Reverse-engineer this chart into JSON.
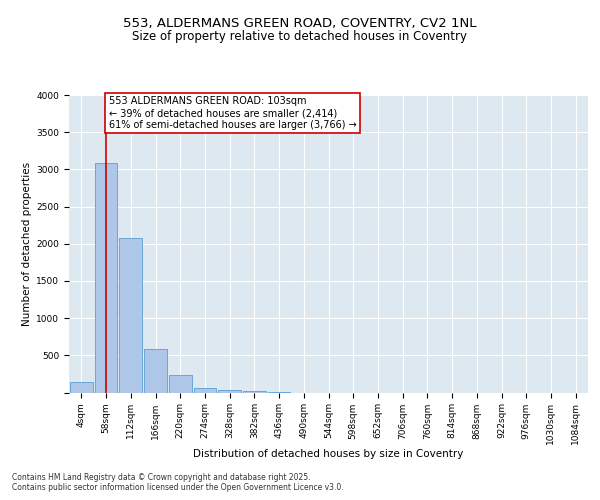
{
  "title_line1": "553, ALDERMANS GREEN ROAD, COVENTRY, CV2 1NL",
  "title_line2": "Size of property relative to detached houses in Coventry",
  "xlabel": "Distribution of detached houses by size in Coventry",
  "ylabel": "Number of detached properties",
  "bar_labels": [
    "4sqm",
    "58sqm",
    "112sqm",
    "166sqm",
    "220sqm",
    "274sqm",
    "328sqm",
    "382sqm",
    "436sqm",
    "490sqm",
    "544sqm",
    "598sqm",
    "652sqm",
    "706sqm",
    "760sqm",
    "814sqm",
    "868sqm",
    "922sqm",
    "976sqm",
    "1030sqm",
    "1084sqm"
  ],
  "bar_values": [
    140,
    3080,
    2080,
    580,
    230,
    65,
    35,
    25,
    5,
    0,
    0,
    0,
    0,
    0,
    0,
    0,
    0,
    0,
    0,
    0,
    0
  ],
  "bar_color": "#aec6e8",
  "bar_edge_color": "#5a9fd4",
  "vline_x": 1.0,
  "vline_color": "#cc0000",
  "annotation_text": "553 ALDERMANS GREEN ROAD: 103sqm\n← 39% of detached houses are smaller (2,414)\n61% of semi-detached houses are larger (3,766) →",
  "annotation_box_color": "#ffffff",
  "annotation_box_edge": "#cc0000",
  "ylim": [
    0,
    4000
  ],
  "yticks": [
    0,
    500,
    1000,
    1500,
    2000,
    2500,
    3000,
    3500,
    4000
  ],
  "background_color": "#dde8f0",
  "grid_color": "#ffffff",
  "footer_text": "Contains HM Land Registry data © Crown copyright and database right 2025.\nContains public sector information licensed under the Open Government Licence v3.0.",
  "title_fontsize": 9.5,
  "subtitle_fontsize": 8.5,
  "axis_label_fontsize": 7.5,
  "tick_fontsize": 6.5,
  "annotation_fontsize": 7,
  "footer_fontsize": 5.5
}
